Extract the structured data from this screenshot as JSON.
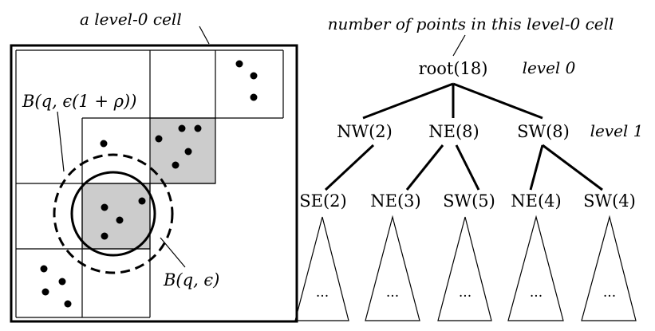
{
  "left_panel": {
    "cell_caption": "a level-0 cell",
    "ball_outer_label": "B(q, ϵ(1 + ρ))",
    "ball_inner_label": "B(q, ϵ)"
  },
  "tree": {
    "annotation": "number of points in this level-0 cell",
    "root": "root(18)",
    "level0_label": "level 0",
    "level1_label": "level 1",
    "level1_nodes": [
      "NW(2)",
      "NE(8)",
      "SW(8)"
    ],
    "level2_nodes": [
      "SE(2)",
      "NE(3)",
      "SW(5)",
      "NE(4)",
      "SW(4)"
    ],
    "subtree_placeholder": "..."
  },
  "colors": {
    "stroke": "#000000",
    "shaded_cell": "#cccccc",
    "background": "#ffffff"
  }
}
